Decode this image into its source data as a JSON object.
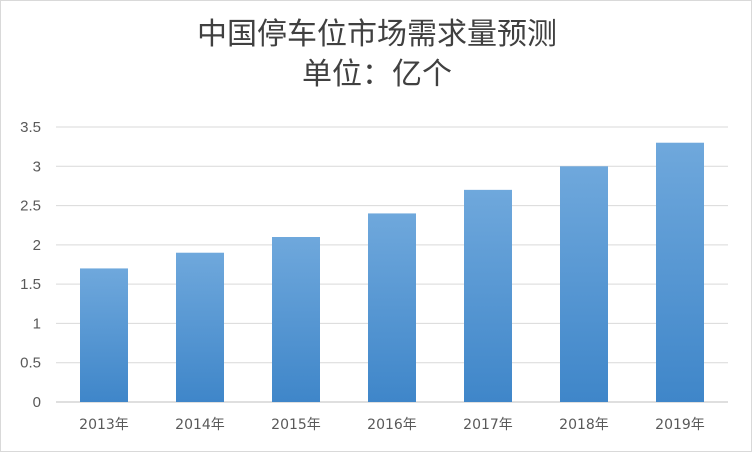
{
  "chart_data": {
    "type": "bar",
    "title": "中国停车位市场需求量预测",
    "subtitle": "单位：亿个",
    "xlabel": "",
    "ylabel": "",
    "categories": [
      "2013年",
      "2014年",
      "2015年",
      "2016年",
      "2017年",
      "2018年",
      "2019年"
    ],
    "values": [
      1.7,
      1.9,
      2.1,
      2.4,
      2.7,
      3.0,
      3.3
    ],
    "ylim": [
      0,
      3.5
    ],
    "yticks": [
      "0",
      "0.5",
      "1",
      "1.5",
      "2",
      "2.5",
      "3",
      "3.5"
    ],
    "grid": true,
    "legend": "none",
    "bar_color_top": "#6fa8dc",
    "bar_color_bottom": "#3f86c9"
  }
}
